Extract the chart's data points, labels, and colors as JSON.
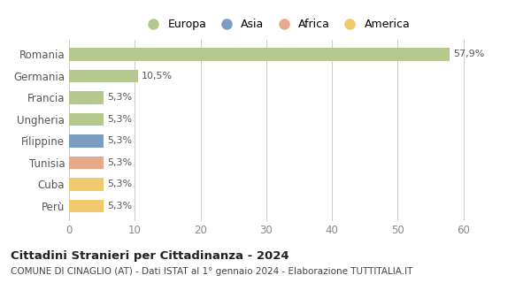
{
  "categories": [
    "Romania",
    "Germania",
    "Francia",
    "Ungheria",
    "Filippine",
    "Tunisia",
    "Cuba",
    "Perù"
  ],
  "values": [
    57.9,
    10.5,
    5.3,
    5.3,
    5.3,
    5.3,
    5.3,
    5.3
  ],
  "labels": [
    "57,9%",
    "10,5%",
    "5,3%",
    "5,3%",
    "5,3%",
    "5,3%",
    "5,3%",
    "5,3%"
  ],
  "bar_colors": [
    "#b5c98e",
    "#b5c98e",
    "#b5c98e",
    "#b5c98e",
    "#7b9dc4",
    "#e8a98a",
    "#f0c96e",
    "#f0c96e"
  ],
  "legend_labels": [
    "Europa",
    "Asia",
    "Africa",
    "America"
  ],
  "legend_colors": [
    "#b5c98e",
    "#7b9dc4",
    "#e8a98a",
    "#f0c96e"
  ],
  "xlim": [
    0,
    63
  ],
  "xticks": [
    0,
    10,
    20,
    30,
    40,
    50,
    60
  ],
  "title": "Cittadini Stranieri per Cittadinanza - 2024",
  "subtitle": "COMUNE DI CINAGLIO (AT) - Dati ISTAT al 1° gennaio 2024 - Elaborazione TUTTITALIA.IT",
  "background_color": "#ffffff",
  "grid_color": "#cccccc"
}
